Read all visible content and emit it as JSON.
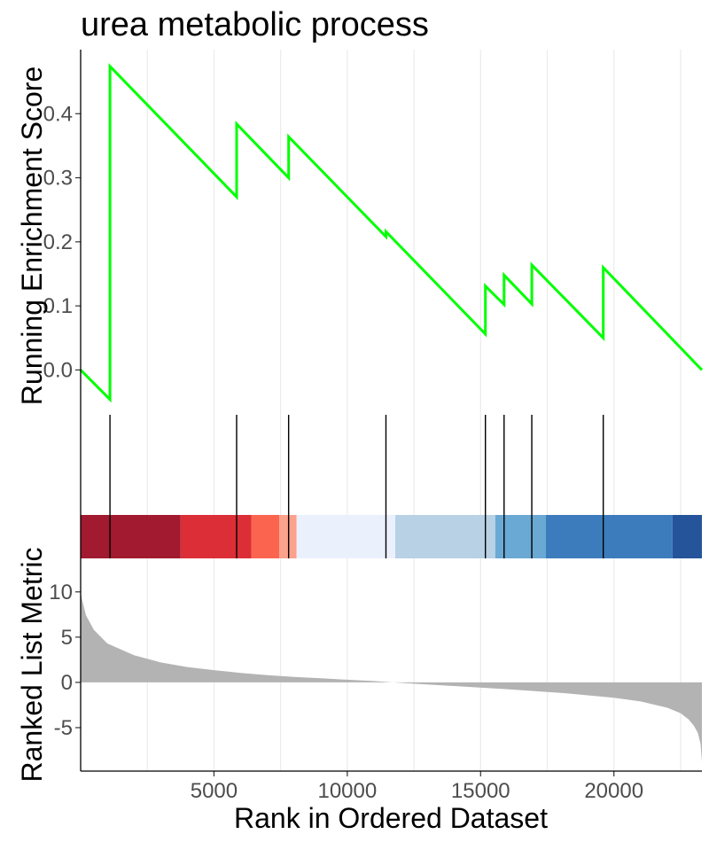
{
  "chart_data": {
    "type": "line",
    "title": "urea metabolic process",
    "xlabel": "Rank in Ordered Dataset",
    "xlim": [
      0,
      23300
    ],
    "x_ticks": [
      5000,
      10000,
      15000,
      20000
    ],
    "x_tick_labels": [
      "5000",
      "10000",
      "15000",
      "20000"
    ],
    "grid": true,
    "colors": {
      "es_line": "#00ff00",
      "metric_area": "#b3b3b3",
      "hit_line": "#000000",
      "gridline": "#ebebeb"
    },
    "enrichment": {
      "ylabel": "Running Enrichment Score",
      "ylim": [
        -0.07,
        0.5
      ],
      "y_ticks": [
        0.0,
        0.1,
        0.2,
        0.3,
        0.4
      ],
      "y_tick_labels": [
        "0.0",
        "0.1",
        "0.2",
        "0.3",
        "0.4"
      ],
      "series": [
        {
          "x": [
            0,
            1100,
            1100,
            5850,
            5850,
            7800,
            7800,
            11450,
            11450,
            15180,
            15180,
            15880,
            15880,
            16920,
            16920,
            19600,
            19600,
            23300
          ],
          "y": [
            0.0,
            -0.046,
            0.474,
            0.27,
            0.384,
            0.3,
            0.364,
            0.208,
            0.216,
            0.056,
            0.131,
            0.102,
            0.148,
            0.103,
            0.164,
            0.05,
            0.16,
            0.0
          ]
        }
      ]
    },
    "hits": [
      1100,
      5850,
      7800,
      11450,
      15180,
      15880,
      16920,
      19600
    ],
    "rank_color_bands": [
      {
        "from": 0,
        "to": 3750,
        "color": "#a11a2f"
      },
      {
        "from": 3750,
        "to": 6400,
        "color": "#dc2e37"
      },
      {
        "from": 6400,
        "to": 7450,
        "color": "#fb6550"
      },
      {
        "from": 7450,
        "to": 8100,
        "color": "#fca18b"
      },
      {
        "from": 8100,
        "to": 11800,
        "color": "#ebf0fd"
      },
      {
        "from": 11800,
        "to": 15550,
        "color": "#b8d1e5"
      },
      {
        "from": 15550,
        "to": 17450,
        "color": "#6aa9d4"
      },
      {
        "from": 17450,
        "to": 22200,
        "color": "#3d7cbc"
      },
      {
        "from": 22200,
        "to": 23300,
        "color": "#25549a"
      }
    ],
    "ranked_metric": {
      "ylabel": "Ranked List Metric",
      "ylim": [
        -9.8,
        13.7
      ],
      "y_ticks": [
        10,
        5,
        0,
        -5
      ],
      "y_tick_labels": [
        "10",
        "5",
        "0",
        "-5"
      ],
      "x": [
        0,
        50,
        200,
        500,
        1000,
        2000,
        3000,
        4000,
        5000,
        6000,
        7000,
        8000,
        9000,
        10000,
        11000,
        11700,
        12500,
        14000,
        16000,
        18000,
        20000,
        21000,
        22000,
        22500,
        22800,
        23000,
        23150,
        23250,
        23300
      ],
      "y": [
        10.0,
        9.2,
        7.4,
        5.8,
        4.3,
        3.0,
        2.2,
        1.7,
        1.35,
        1.05,
        0.8,
        0.6,
        0.45,
        0.3,
        0.15,
        0.0,
        -0.15,
        -0.4,
        -0.75,
        -1.15,
        -1.7,
        -2.1,
        -2.8,
        -3.4,
        -4.1,
        -4.8,
        -5.6,
        -6.8,
        -8.8
      ]
    }
  }
}
